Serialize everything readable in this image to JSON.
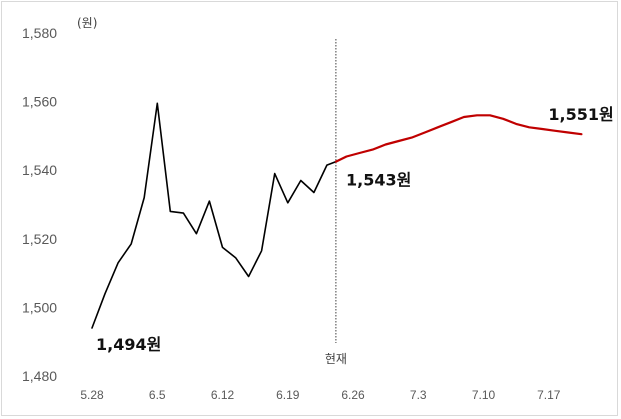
{
  "chart_data": {
    "type": "line",
    "unit_label": "(원)",
    "ylim": [
      1480,
      1580
    ],
    "yticks": [
      "1,480",
      "1,500",
      "1,520",
      "1,540",
      "1,560",
      "1,580"
    ],
    "ytick_values": [
      1480,
      1500,
      1520,
      1540,
      1560,
      1580
    ],
    "xticks": [
      {
        "label": "5.28",
        "t": 0
      },
      {
        "label": "6.5",
        "t": 5
      },
      {
        "label": "6.12",
        "t": 10
      },
      {
        "label": "6.19",
        "t": 15
      },
      {
        "label": "6.26",
        "t": 20
      },
      {
        "label": "7.3",
        "t": 25
      },
      {
        "label": "7.10",
        "t": 30
      },
      {
        "label": "7.17",
        "t": 35
      }
    ],
    "current_marker": {
      "label": "현재",
      "t": 18
    },
    "series": [
      {
        "name": "actual",
        "color": "#000000",
        "points": [
          [
            0,
            1494
          ],
          [
            1,
            1504
          ],
          [
            2,
            1513
          ],
          [
            3,
            1518.5
          ],
          [
            4,
            1532
          ],
          [
            5,
            1559.5
          ],
          [
            6,
            1528
          ],
          [
            7,
            1527.5
          ],
          [
            8,
            1521.5
          ],
          [
            9,
            1531
          ],
          [
            10,
            1517.5
          ],
          [
            11,
            1514.5
          ],
          [
            12,
            1509
          ],
          [
            13,
            1516.5
          ],
          [
            14,
            1539
          ],
          [
            15,
            1530.5
          ],
          [
            16,
            1537
          ],
          [
            17,
            1533.5
          ],
          [
            18,
            1541.5
          ],
          [
            18.7,
            1542.5
          ]
        ]
      },
      {
        "name": "forecast",
        "color": "#c00000",
        "points": [
          [
            18.7,
            1542.5
          ],
          [
            19.5,
            1544
          ],
          [
            20.5,
            1545
          ],
          [
            21.5,
            1546
          ],
          [
            22.5,
            1547.5
          ],
          [
            23.5,
            1548.5
          ],
          [
            24.5,
            1549.5
          ],
          [
            25.5,
            1551
          ],
          [
            26.5,
            1552.5
          ],
          [
            27.5,
            1554
          ],
          [
            28.5,
            1555.5
          ],
          [
            29.5,
            1556
          ],
          [
            30.5,
            1556
          ],
          [
            31.5,
            1555
          ],
          [
            32.5,
            1553.5
          ],
          [
            33.5,
            1552.5
          ],
          [
            34.5,
            1552
          ],
          [
            35.5,
            1551.5
          ],
          [
            36.5,
            1551
          ],
          [
            37.5,
            1550.5
          ]
        ]
      }
    ],
    "annotations": [
      {
        "text": "1,494원",
        "t": 0,
        "v": 1494
      },
      {
        "text": "1,543원",
        "t": 18.7,
        "v": 1542.5
      },
      {
        "text": "1,551원",
        "t": 37.5,
        "v": 1550.5
      }
    ],
    "grid": false
  }
}
